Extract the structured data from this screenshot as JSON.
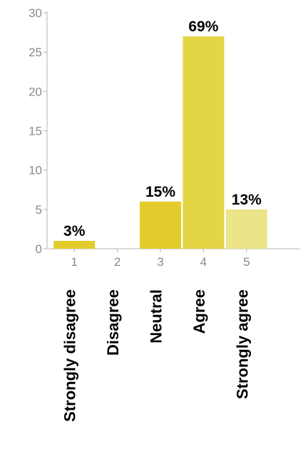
{
  "chart_data": {
    "type": "bar",
    "categories": [
      "1",
      "2",
      "3",
      "4",
      "5"
    ],
    "category_names": [
      "Strongly disagree",
      "Disagree",
      "Neutral",
      "Agree",
      "Strongly agree"
    ],
    "values": [
      1,
      0,
      6,
      27,
      5
    ],
    "data_labels": [
      "3%",
      "",
      "15%",
      "69%",
      "13%"
    ],
    "title": "",
    "xlabel": "",
    "ylabel": "",
    "ylim": [
      0,
      30
    ],
    "yticks": [
      0,
      5,
      10,
      15,
      20,
      25,
      30
    ],
    "grid": false,
    "legend": "none",
    "colors": [
      "#e1cc2b",
      "#e1cc2b",
      "#e1cc2b",
      "#e4d544",
      "#ece488"
    ]
  }
}
